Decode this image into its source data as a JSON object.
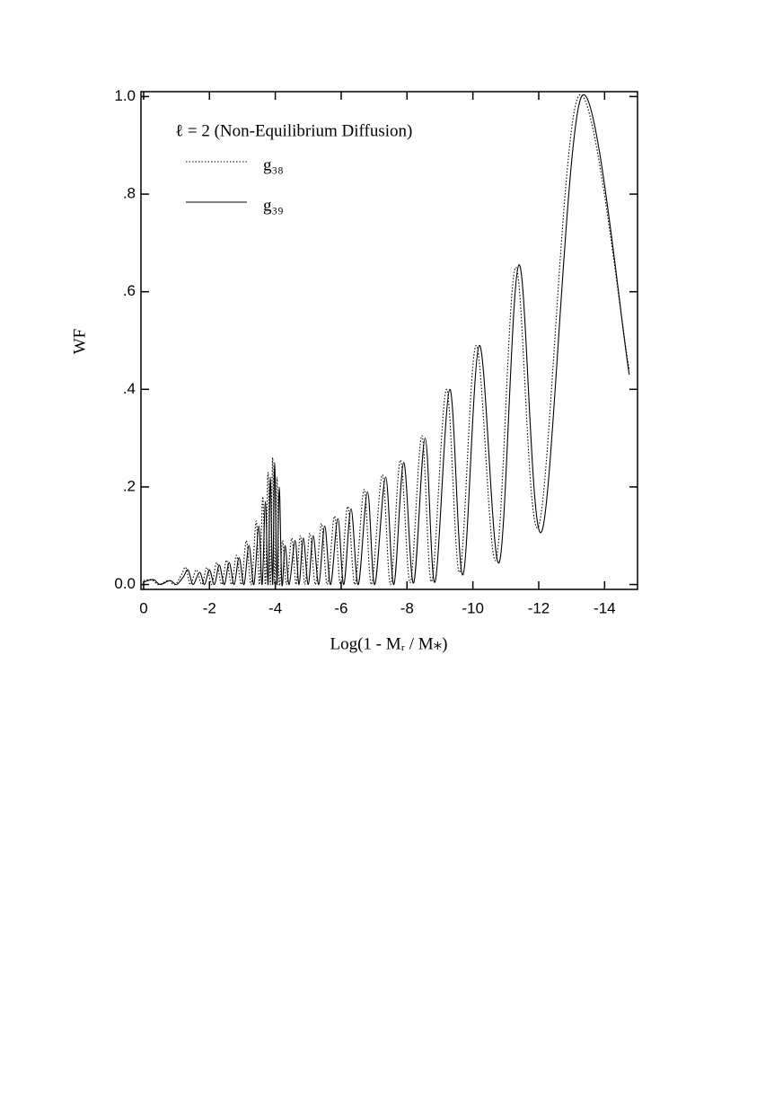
{
  "chart_data": {
    "type": "line",
    "legend_title": "ℓ = 2 (Non-Equilibrium Diffusion)",
    "xlabel": "Log(1 - Mᵣ / M⁎)",
    "ylabel": "WF",
    "xlim": [
      0.08,
      -15
    ],
    "ylim": [
      -0.01,
      1.01
    ],
    "xticks": [
      0,
      -2,
      -4,
      -6,
      -8,
      -10,
      -12,
      -14
    ],
    "yticks": [
      {
        "value": 0,
        "label": "0.0"
      },
      {
        "value": 0.2,
        "label": ".2"
      },
      {
        "value": 0.4,
        "label": ".4"
      },
      {
        "value": 0.6,
        "label": ".6"
      },
      {
        "value": 0.8,
        "label": ".8"
      },
      {
        "value": 1,
        "label": "1.0"
      }
    ],
    "grid": false,
    "legend": "upper-left",
    "series": [
      {
        "name": "g₃₈",
        "color": "#000000",
        "style": "dotted",
        "x": [
          0,
          -0.25,
          -0.45,
          -0.75,
          -0.95,
          -1.15,
          -1.28,
          -1.42,
          -1.6,
          -1.77,
          -1.92,
          -2.07,
          -2.22,
          -2.37,
          -2.52,
          -2.67,
          -2.82,
          -2.97,
          -3.12,
          -3.27,
          -3.42,
          -3.52,
          -3.62,
          -3.7,
          -3.78,
          -3.85,
          -3.92,
          -3.98,
          -4.05,
          -4.12,
          -4.22,
          -4.34,
          -4.5,
          -4.63,
          -4.76,
          -4.9,
          -5.05,
          -5.22,
          -5.4,
          -5.58,
          -5.8,
          -5.98,
          -6.2,
          -6.42,
          -6.7,
          -6.92,
          -7.25,
          -7.5,
          -7.8,
          -8.1,
          -8.45,
          -8.75,
          -9.2,
          -9.6,
          -10.1,
          -10.7,
          -11.3,
          -12.0,
          -13.2,
          -14.75
        ],
        "values": [
          0.008,
          0.01,
          0.0,
          0.008,
          0.0,
          0.02,
          0.035,
          0.0,
          0.03,
          0.0,
          0.035,
          0.0,
          0.045,
          0.0,
          0.05,
          0.0,
          0.06,
          0.0,
          0.09,
          0.0,
          0.13,
          0.0,
          0.18,
          0.0,
          0.23,
          0.0,
          0.26,
          0.0,
          0.22,
          0.0,
          0.09,
          0.0,
          0.095,
          0.0,
          0.1,
          0.0,
          0.105,
          0.0,
          0.125,
          0.0,
          0.14,
          0.0,
          0.16,
          0.0,
          0.195,
          0.0,
          0.225,
          0.0,
          0.255,
          0.004,
          0.305,
          0.006,
          0.4,
          0.025,
          0.49,
          0.05,
          0.65,
          0.12,
          1.0,
          0.44
        ]
      },
      {
        "name": "g₃₉",
        "color": "#000000",
        "style": "solid",
        "x": [
          0,
          -0.3,
          -0.5,
          -0.8,
          -1.0,
          -1.2,
          -1.35,
          -1.5,
          -1.7,
          -1.85,
          -2.0,
          -2.15,
          -2.3,
          -2.45,
          -2.6,
          -2.75,
          -2.9,
          -3.05,
          -3.2,
          -3.35,
          -3.5,
          -3.6,
          -3.7,
          -3.78,
          -3.85,
          -3.92,
          -3.98,
          -4.05,
          -4.12,
          -4.2,
          -4.3,
          -4.42,
          -4.6,
          -4.72,
          -4.85,
          -5.0,
          -5.15,
          -5.32,
          -5.5,
          -5.68,
          -5.9,
          -6.08,
          -6.3,
          -6.52,
          -6.8,
          -7.02,
          -7.35,
          -7.6,
          -7.9,
          -8.2,
          -8.55,
          -8.85,
          -9.3,
          -9.7,
          -10.2,
          -10.8,
          -11.4,
          -12.1,
          -13.3,
          -14.75
        ],
        "values": [
          0.005,
          0.01,
          0.0,
          0.008,
          0.0,
          0.015,
          0.03,
          0.0,
          0.025,
          0.0,
          0.03,
          0.0,
          0.04,
          0.0,
          0.045,
          0.0,
          0.055,
          0.0,
          0.08,
          0.0,
          0.12,
          0.0,
          0.17,
          0.0,
          0.22,
          0.0,
          0.25,
          0.0,
          0.2,
          0.0,
          0.08,
          0.0,
          0.09,
          0.0,
          0.095,
          0.0,
          0.1,
          0.0,
          0.12,
          0.0,
          0.135,
          0.0,
          0.155,
          0.0,
          0.19,
          0.0,
          0.22,
          0.0,
          0.25,
          0.003,
          0.3,
          0.005,
          0.4,
          0.02,
          0.49,
          0.045,
          0.655,
          0.11,
          1.0,
          0.43
        ]
      }
    ]
  }
}
